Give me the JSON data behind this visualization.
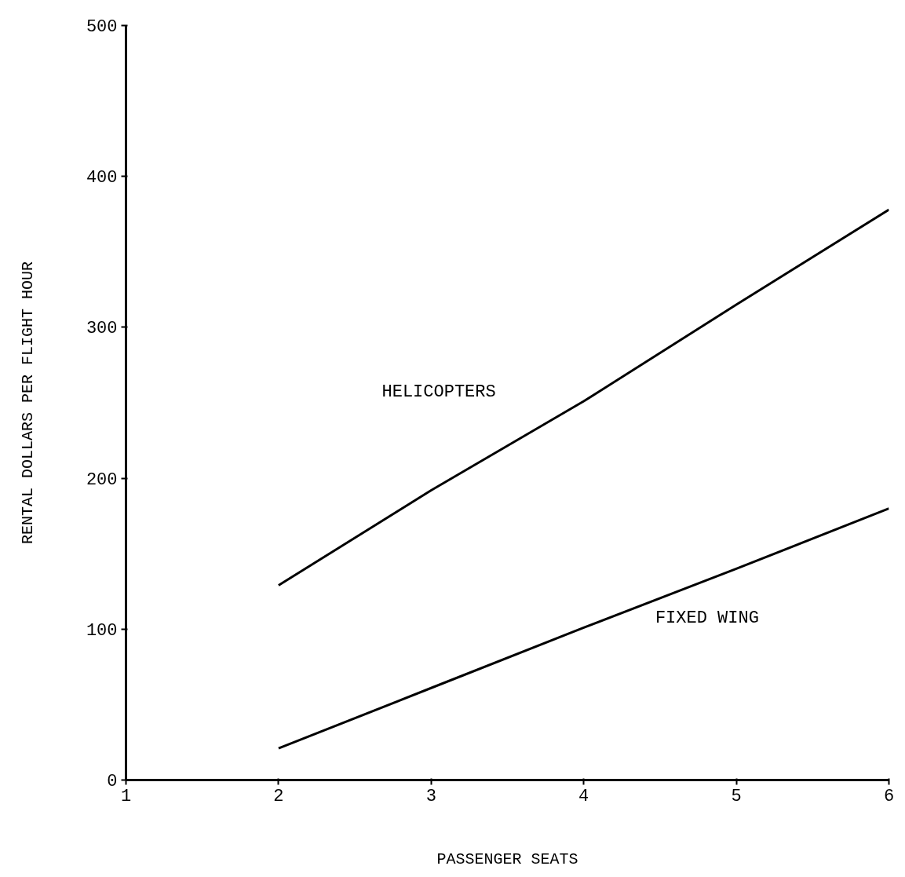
{
  "chart_data": {
    "type": "line",
    "xlabel": "PASSENGER SEATS",
    "ylabel": "RENTAL DOLLARS PER FLIGHT HOUR",
    "x": [
      2,
      3,
      4,
      5,
      6
    ],
    "series": [
      {
        "name": "HELICOPTERS",
        "color": "#000000",
        "values": [
          129,
          192,
          251,
          315,
          378
        ]
      },
      {
        "name": "FIXED WING",
        "color": "#000000",
        "values": [
          21,
          61,
          101,
          140,
          180
        ]
      }
    ],
    "xlim": [
      1,
      6
    ],
    "ylim": [
      0,
      500
    ],
    "xticks": [
      1,
      2,
      3,
      4,
      5,
      6
    ],
    "yticks": [
      0,
      100,
      200,
      300,
      400,
      500
    ],
    "grid": false,
    "marker": "none",
    "line_style": "solid"
  }
}
